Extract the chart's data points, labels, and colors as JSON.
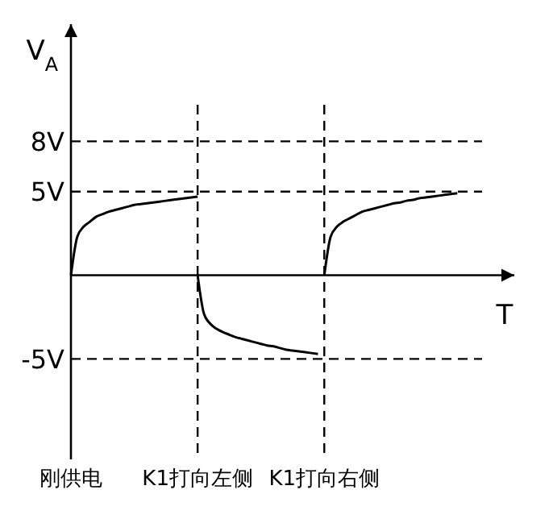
{
  "chart_data": {
    "type": "line",
    "xlabel": "T",
    "ylabel": "V$_{A}$",
    "ylim": [
      -11,
      15
    ],
    "categories": [
      "刚供电",
      null,
      null,
      null,
      null,
      null,
      null,
      null,
      null,
      null,
      null,
      null,
      null,
      null,
      null,
      null,
      null,
      null,
      null,
      null,
      "K1打向左侧",
      null,
      null,
      null,
      null,
      null,
      null,
      null,
      null,
      null,
      null,
      null,
      null,
      null,
      null,
      null,
      null,
      null,
      null,
      null,
      "K1打向右侧",
      null,
      null,
      null,
      null,
      null,
      null,
      null,
      null,
      null,
      null,
      null,
      null,
      null,
      null,
      null,
      null,
      null,
      null,
      null,
      null,
      null,
      null,
      null,
      null,
      null,
      null,
      null,
      null,
      null,
      null
    ],
    "yticks": [
      {
        "value": 8,
        "label": "8V"
      },
      {
        "value": 5,
        "label": "5V"
      },
      {
        "value": -5,
        "label": "-5V"
      }
    ],
    "series": [
      {
        "color": "#000000",
        "values": [
          0,
          2.3,
          2.9,
          3.2,
          3.5,
          3.65,
          3.8,
          3.9,
          4.0,
          4.1,
          4.2,
          4.25,
          4.3,
          4.35,
          4.4,
          4.45,
          4.5,
          4.55,
          4.6,
          4.65,
          4.7,
          null,
          null,
          null,
          null,
          null,
          null,
          null,
          null,
          null,
          null,
          null,
          null,
          null,
          null,
          null,
          null,
          null,
          null,
          null,
          null,
          null,
          null,
          null,
          null,
          null,
          null,
          null,
          null,
          null,
          null,
          null,
          null,
          null,
          null,
          null,
          null,
          null,
          null,
          null,
          null,
          null,
          null,
          null,
          null,
          null,
          null,
          null,
          null,
          null,
          null
        ]
      },
      {
        "color": "#000000",
        "values": [
          null,
          null,
          null,
          null,
          null,
          null,
          null,
          null,
          null,
          null,
          null,
          null,
          null,
          null,
          null,
          null,
          null,
          null,
          null,
          null,
          0,
          -2.3,
          -2.9,
          -3.2,
          -3.4,
          -3.55,
          -3.7,
          -3.8,
          -3.9,
          -4.0,
          -4.1,
          -4.2,
          -4.25,
          -4.35,
          -4.45,
          -4.5,
          -4.55,
          -4.6,
          -4.65,
          -4.7,
          null,
          null,
          null,
          null,
          null,
          null,
          null,
          null,
          null,
          null,
          null,
          null,
          null,
          null,
          null,
          null,
          null,
          null,
          null,
          null,
          null,
          null,
          null,
          null,
          null,
          null,
          null,
          null,
          null,
          null,
          null
        ]
      },
      {
        "color": "#000000",
        "values": [
          null,
          null,
          null,
          null,
          null,
          null,
          null,
          null,
          null,
          null,
          null,
          null,
          null,
          null,
          null,
          null,
          null,
          null,
          null,
          null,
          null,
          null,
          null,
          null,
          null,
          null,
          null,
          null,
          null,
          null,
          null,
          null,
          null,
          null,
          null,
          null,
          null,
          null,
          null,
          null,
          0,
          2.3,
          2.9,
          3.2,
          3.4,
          3.6,
          3.8,
          3.9,
          4.0,
          4.1,
          4.2,
          4.3,
          4.35,
          4.45,
          4.5,
          4.6,
          4.65,
          4.7,
          4.75,
          4.8,
          4.85,
          4.9,
          null,
          null,
          null,
          null,
          null,
          null,
          null,
          null,
          null
        ]
      }
    ],
    "ref_lines": [
      {
        "axis": "y",
        "value": 8,
        "line_style": "dashed",
        "color": "#000000"
      },
      {
        "axis": "y",
        "value": 5,
        "line_style": "dashed",
        "color": "#000000"
      },
      {
        "axis": "y",
        "value": -5,
        "line_style": "dashed",
        "color": "#000000"
      },
      {
        "axis": "x",
        "value": "K1打向左侧",
        "line_style": "dashed",
        "color": "#000000"
      },
      {
        "axis": "x",
        "value": "K1打向右侧",
        "line_style": "dashed",
        "color": "#000000"
      }
    ]
  }
}
